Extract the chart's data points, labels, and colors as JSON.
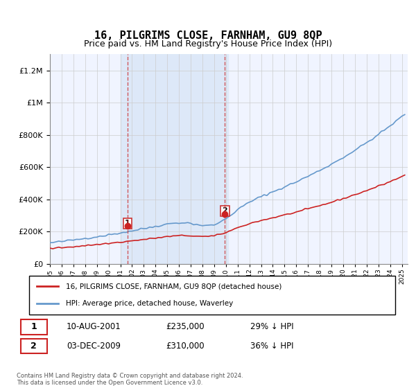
{
  "title": "16, PILGRIMS CLOSE, FARNHAM, GU9 8QP",
  "subtitle": "Price paid vs. HM Land Registry's House Price Index (HPI)",
  "ylim": [
    0,
    1300000
  ],
  "yticks": [
    0,
    200000,
    400000,
    600000,
    800000,
    1000000,
    1200000
  ],
  "ytick_labels": [
    "£0",
    "£200K",
    "£400K",
    "£600K",
    "£800K",
    "£1M",
    "£1.2M"
  ],
  "background_color": "#ffffff",
  "plot_bg_color": "#f0f4ff",
  "shaded_region_color": "#dde8f8",
  "grid_color": "#cccccc",
  "hpi_color": "#6699cc",
  "price_color": "#cc2222",
  "dashed_line1_color": "#cc3333",
  "dashed_line2_color": "#cc3333",
  "transaction1_date_num": 2001.6,
  "transaction1_price": 235000,
  "transaction1_label": "1",
  "transaction2_date_num": 2009.92,
  "transaction2_price": 310000,
  "transaction2_label": "2",
  "legend_line1": "16, PILGRIMS CLOSE, FARNHAM, GU9 8QP (detached house)",
  "legend_line2": "HPI: Average price, detached house, Waverley",
  "table_row1": [
    "1",
    "10-AUG-2001",
    "£235,000",
    "29% ↓ HPI"
  ],
  "table_row2": [
    "2",
    "03-DEC-2009",
    "£310,000",
    "36% ↓ HPI"
  ],
  "footer": "Contains HM Land Registry data © Crown copyright and database right 2024.\nThis data is licensed under the Open Government Licence v3.0.",
  "xmin": 1995,
  "xmax": 2025.5
}
